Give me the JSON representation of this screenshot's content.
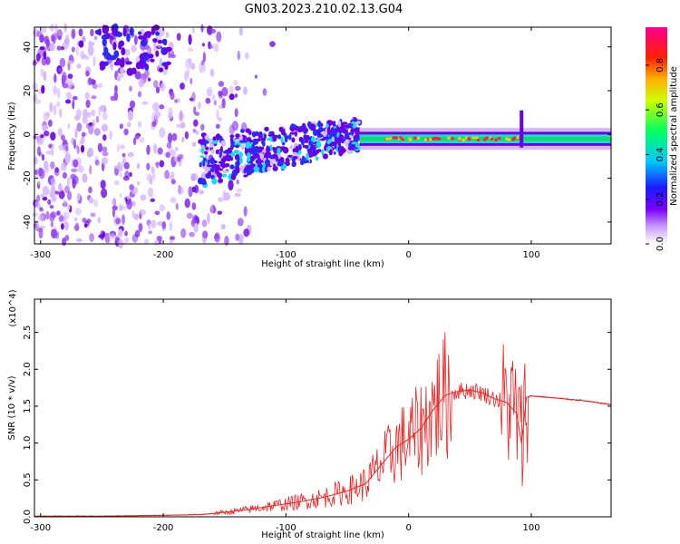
{
  "title": "GN03.2023.210.02.13.G04",
  "colors": {
    "spectrum_light": "#d6b8ff",
    "spectrum_mid": "#9a4df2",
    "spectrum_dark": "#6a00e8",
    "band_blue": "#2a2aff",
    "band_cyan": "#10e0e0",
    "band_green": "#1ed760",
    "peak_red": "#ff2020",
    "snr_line": "#ee2222",
    "axis": "#000000"
  },
  "chart_data": [
    {
      "type": "heatmap",
      "xlabel": "Height of straight line (km)",
      "ylabel": "Frequency (Hz)",
      "xlim": [
        -305,
        165
      ],
      "ylim": [
        -50,
        49
      ],
      "xticks": [
        -300,
        -200,
        -100,
        0,
        100
      ],
      "yticks": [
        -40,
        -20,
        0,
        20,
        40
      ],
      "colorbar": {
        "label": "Normalized spectral amplitude",
        "range": [
          0.0,
          0.97
        ],
        "ticks": [
          0.0,
          0.2,
          0.4,
          0.6,
          0.8
        ],
        "colormap": [
          "#ffffff",
          "#7a00ff",
          "#0000ff",
          "#00c8ff",
          "#00ff40",
          "#ffff00",
          "#ff8000",
          "#ff0000",
          "#ff00a0"
        ]
      },
      "features": {
        "noise_region_km": [
          -305,
          -165
        ],
        "dispersed_band_km": [
          -170,
          -40
        ],
        "dispersed_band_freq_hz": [
          -12,
          2
        ],
        "carrier_band_km": [
          -40,
          165
        ],
        "carrier_freq_hz": -2,
        "spike_km": 92,
        "spike_freq_hz": 8
      }
    },
    {
      "type": "line",
      "xlabel": "Height of straight line (km)",
      "ylabel": "SNR (10 * v/v)",
      "y_multiplier": "(x10^4)",
      "xlim": [
        -305,
        165
      ],
      "ylim": [
        0,
        2.95
      ],
      "xticks": [
        -300,
        -200,
        -100,
        0,
        100
      ],
      "yticks": [
        0.0,
        0.5,
        1.0,
        1.5,
        2.0,
        2.5
      ],
      "x": [
        -305,
        -250,
        -200,
        -170,
        -150,
        -130,
        -110,
        -90,
        -70,
        -50,
        -35,
        -20,
        -10,
        0,
        10,
        20,
        30,
        40,
        50,
        60,
        70,
        80,
        88,
        92,
        96,
        100,
        120,
        140,
        165
      ],
      "y": [
        0.01,
        0.01,
        0.02,
        0.03,
        0.06,
        0.1,
        0.15,
        0.2,
        0.26,
        0.35,
        0.45,
        0.75,
        0.95,
        1.05,
        1.2,
        1.45,
        1.65,
        1.7,
        1.72,
        1.68,
        1.6,
        1.55,
        1.4,
        1.0,
        1.62,
        1.64,
        1.61,
        1.58,
        1.52
      ]
    }
  ]
}
